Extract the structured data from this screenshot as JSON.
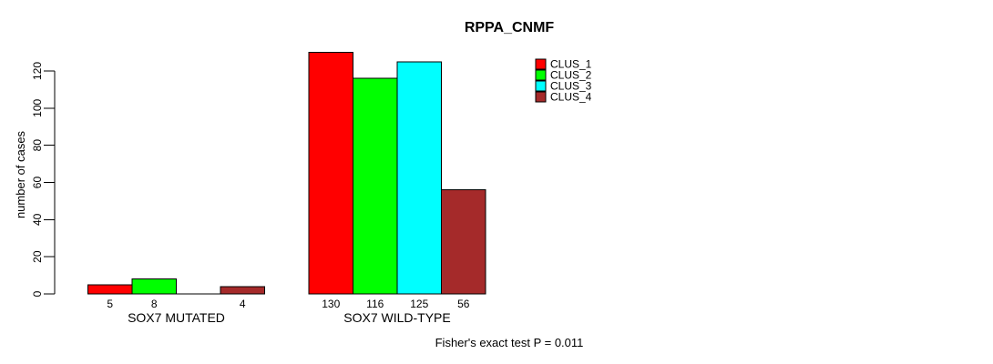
{
  "chart_data": {
    "type": "bar",
    "title": "RPPA_CNMF",
    "ylabel": "number of cases",
    "xlabel": "",
    "ylim": [
      0,
      130
    ],
    "yticks": [
      0,
      20,
      40,
      60,
      80,
      100,
      120
    ],
    "grid": false,
    "legend_position": "top-right",
    "categories": [
      "SOX7 MUTATED",
      "SOX7 WILD-TYPE"
    ],
    "series": [
      {
        "name": "CLUS_1",
        "color": "#ff0000",
        "values": [
          5,
          130
        ]
      },
      {
        "name": "CLUS_2",
        "color": "#00ff00",
        "values": [
          8,
          116
        ]
      },
      {
        "name": "CLUS_3",
        "color": "#00ffff",
        "values": [
          0,
          125
        ]
      },
      {
        "name": "CLUS_4",
        "color": "#a52a2a",
        "values": [
          4,
          56
        ]
      }
    ],
    "bar_value_labels": [
      [
        "5",
        "8",
        "",
        "4"
      ],
      [
        "130",
        "116",
        "125",
        "56"
      ]
    ],
    "annotation": "Fisher's exact test P = 0.011"
  }
}
